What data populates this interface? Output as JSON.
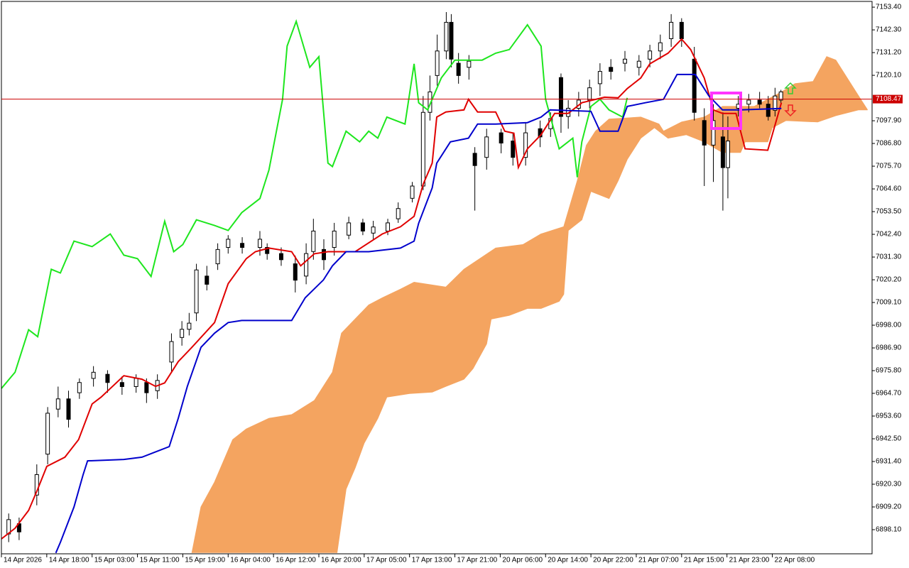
{
  "chart_data": {
    "type": "candlestick",
    "xlim": [
      0,
      192
    ],
    "ylim": [
      6886.3,
      7156.9
    ],
    "yticks": [
      {
        "value": 7153.4,
        "label": "7153.40"
      },
      {
        "value": 7142.3,
        "label": "7142.30"
      },
      {
        "value": 7131.2,
        "label": "7131.20"
      },
      {
        "value": 7120.1,
        "label": "7120.10"
      },
      {
        "value": 7097.9,
        "label": "7097.90"
      },
      {
        "value": 7086.8,
        "label": "7086.80"
      },
      {
        "value": 7075.7,
        "label": "7075.70"
      },
      {
        "value": 7064.6,
        "label": "7064.60"
      },
      {
        "value": 7053.5,
        "label": "7053.50"
      },
      {
        "value": 7042.4,
        "label": "7042.40"
      },
      {
        "value": 7031.3,
        "label": "7031.30"
      },
      {
        "value": 7020.2,
        "label": "7020.20"
      },
      {
        "value": 7009.1,
        "label": "7009.10"
      },
      {
        "value": 6998,
        "label": "6998.00"
      },
      {
        "value": 6986.9,
        "label": "6986.90"
      },
      {
        "value": 6975.8,
        "label": "6975.80"
      },
      {
        "value": 6964.7,
        "label": "6964.70"
      },
      {
        "value": 6953.6,
        "label": "6953.60"
      },
      {
        "value": 6942.5,
        "label": "6942.50"
      },
      {
        "value": 6931.4,
        "label": "6931.40"
      },
      {
        "value": 6920.3,
        "label": "6920.30"
      },
      {
        "value": 6909.2,
        "label": "6909.20"
      },
      {
        "value": 6898.1,
        "label": "6898.10"
      }
    ],
    "xticks": [
      {
        "value": 0,
        "label": "14 Apr 2026"
      },
      {
        "value": 10,
        "label": "14 Apr 18:00"
      },
      {
        "value": 20,
        "label": "15 Apr 03:00"
      },
      {
        "value": 30,
        "label": "15 Apr 11:00"
      },
      {
        "value": 40,
        "label": "15 Apr 19:00"
      },
      {
        "value": 50,
        "label": "16 Apr 04:00"
      },
      {
        "value": 60,
        "label": "16 Apr 12:00"
      },
      {
        "value": 70,
        "label": "16 Apr 20:00"
      },
      {
        "value": 80,
        "label": "17 Apr 05:00"
      },
      {
        "value": 90,
        "label": "17 Apr 13:00"
      },
      {
        "value": 100,
        "label": "17 Apr 21:00"
      },
      {
        "value": 110,
        "label": "20 Apr 06:00"
      },
      {
        "value": 120,
        "label": "20 Apr 14:00"
      },
      {
        "value": 130,
        "label": "20 Apr 22:00"
      },
      {
        "value": 140,
        "label": "21 Apr 07:00"
      },
      {
        "value": 150,
        "label": "21 Apr 15:00"
      },
      {
        "value": 160,
        "label": "21 Apr 23:00"
      },
      {
        "value": 170,
        "label": "22 Apr 08:00"
      }
    ],
    "candles": {
      "x": [
        1.6,
        3.9,
        7.8,
        10.2,
        12.5,
        14.8,
        17.2,
        20.3,
        23.4,
        26.6,
        29.7,
        32.0,
        34.4,
        37.5,
        39.8,
        41.4,
        43.0,
        45.3,
        47.7,
        50.0,
        53.1,
        57.0,
        58.6,
        61.7,
        64.8,
        67.2,
        68.8,
        71.1,
        73.4,
        76.6,
        79.7,
        82.0,
        85.2,
        87.5,
        90.6,
        93.0,
        94.5,
        96.1,
        98.1,
        99.2,
        100.8,
        103.1,
        104.4,
        107.0,
        110.2,
        112.8,
        115.6,
        118.8,
        121.1,
        123.4,
        125.0,
        127.3,
        129.7,
        132.0,
        134.4,
        137.5,
        140.6,
        143.0,
        145.3,
        147.7,
        150.0,
        152.8,
        155.0,
        157.0,
        159.1,
        160.2,
        162.5,
        164.8,
        167.2,
        169.1,
        170.6,
        171.9
      ],
      "open": [
        6896,
        6901,
        6915,
        6935,
        6957,
        6962,
        6965,
        6972,
        6974,
        6970,
        6968,
        6970,
        6966,
        6980,
        6992,
        6996,
        7004,
        7022,
        7028,
        7036,
        7038,
        7036,
        7036,
        7033,
        7028,
        7022,
        7034,
        7035,
        7036,
        7042,
        7048,
        7043,
        7044,
        7050,
        7060,
        7066,
        7102,
        7120,
        7132,
        7146,
        7126,
        7124,
        7082,
        7080,
        7092,
        7088,
        7080,
        7094,
        7094,
        7119,
        7100,
        7104,
        7108,
        7116,
        7124,
        7126,
        7124,
        7128,
        7132,
        7138,
        7146,
        7128,
        7098,
        7086,
        7090,
        7075,
        7104,
        7106,
        7108,
        7106,
        7103,
        7108
      ],
      "high": [
        6906,
        6904,
        6930,
        6958,
        6968,
        6966,
        6972,
        6978,
        6976,
        6973,
        6974,
        6972,
        6974,
        6994,
        7000,
        7004,
        7028,
        7027,
        7038,
        7042,
        7041,
        7044,
        7038,
        7036,
        7032,
        7038,
        7050,
        7040,
        7048,
        7051,
        7050,
        7049,
        7050,
        7058,
        7068,
        7110,
        7120,
        7140,
        7151,
        7150,
        7131,
        7130,
        7085,
        7094,
        7094,
        7092,
        7097,
        7098,
        7102,
        7121,
        7108,
        7112,
        7118,
        7126,
        7128,
        7132,
        7130,
        7135,
        7140,
        7150,
        7148,
        7134,
        7104,
        7106,
        7102,
        7100,
        7110,
        7111,
        7112,
        7110,
        7114,
        7113
      ],
      "low": [
        6892,
        6893,
        6910,
        6930,
        6953,
        6948,
        6962,
        6968,
        6965,
        6964,
        6965,
        6960,
        6962,
        6975,
        6988,
        6993,
        7000,
        7015,
        7025,
        7033,
        7033,
        7032,
        7030,
        7027,
        7014,
        7018,
        7030,
        7025,
        7032,
        7040,
        7042,
        7040,
        7042,
        7048,
        7058,
        7064,
        7098,
        7115,
        7128,
        7124,
        7116,
        7118,
        7054,
        7074,
        7082,
        7076,
        7076,
        7085,
        7090,
        7092,
        7094,
        7100,
        7104,
        7110,
        7118,
        7122,
        7120,
        7124,
        7128,
        7134,
        7134,
        7098,
        7066,
        7068,
        7054,
        7060,
        7100,
        7102,
        7104,
        7098,
        7100,
        7106
      ],
      "close": [
        6903,
        6897,
        6925,
        6955,
        6962,
        6952,
        6970,
        6975,
        6970,
        6968,
        6972,
        6965,
        6971,
        6990,
        6996,
        6999,
        7025,
        7018,
        7035,
        7040,
        7036,
        7040,
        7033,
        7030,
        7020,
        7033,
        7044,
        7030,
        7044,
        7048,
        7044,
        7046,
        7048,
        7055,
        7066,
        7102,
        7112,
        7132,
        7146,
        7128,
        7120,
        7127,
        7076,
        7090,
        7087,
        7080,
        7092,
        7090,
        7099,
        7100,
        7104,
        7108,
        7114,
        7122,
        7122,
        7128,
        7127,
        7132,
        7136,
        7146,
        7138,
        7102,
        7086,
        7098,
        7075,
        7088,
        7106,
        7108,
        7106,
        7100,
        7110,
        7112
      ]
    },
    "up_color": "#ffffff",
    "down_color": "#000000",
    "cloud": {
      "color": "#f4a460",
      "edges": [
        {
          "x": [
            42,
            44,
            47,
            51,
            54,
            59,
            64,
            69,
            73,
            75,
            78,
            81,
            84,
            88,
            91,
            98,
            102,
            109,
            115,
            119,
            124,
            127,
            129,
            131,
            134,
            141,
            145,
            146,
            150,
            155,
            159,
            166,
            172,
            175,
            179,
            182,
            184,
            189,
            191
          ],
          "values": [
            6886.7,
            6909.2,
            6921.3,
            6942.1,
            6947.3,
            6952.5,
            6954.3,
            6961.2,
            6975.0,
            6994.1,
            7001.0,
            7007.9,
            7011.4,
            7015.6,
            7019.0,
            7016.6,
            7025.3,
            7035.7,
            7037.4,
            7042.6,
            7046.1,
            7068.6,
            7085.9,
            7092.8,
            7098.7,
            7099.7,
            7096.3,
            7092.8,
            7097.3,
            7099.7,
            7104.9,
            7104.9,
            7111.9,
            7116.0,
            7117.1,
            7129.2,
            7127.5,
            7110.1,
            7103.2
          ]
        },
        {
          "x": [
            74,
            76,
            78,
            80,
            83,
            85,
            90,
            95,
            98,
            102,
            104,
            107,
            108,
            112,
            116,
            119,
            123,
            124,
            125,
            128,
            130,
            134,
            136,
            138,
            141,
            144,
            147,
            151,
            155,
            159,
            163,
            164,
            169,
            170,
            173,
            180,
            184,
            189,
            191
          ],
          "values": [
            6886.7,
            6917.9,
            6928.3,
            6940.4,
            6952.5,
            6962.9,
            6964.6,
            6965.3,
            6968.1,
            6971.6,
            6976.8,
            6988.9,
            7001.0,
            7002.8,
            7006.2,
            7006.2,
            7009.7,
            7013.1,
            7044.3,
            7049.5,
            7063.4,
            7059.9,
            7068.6,
            7079.0,
            7089.4,
            7094.5,
            7089.4,
            7091.1,
            7087.6,
            7082.4,
            7082.4,
            7087.6,
            7087.6,
            7094.5,
            7098.0,
            7097.3,
            7100.4,
            7103.2,
            7103.2
          ]
        }
      ]
    },
    "lines": [
      {
        "color": "#1ee61e",
        "x": [
          0,
          3,
          6,
          8,
          11,
          13,
          16,
          20,
          24,
          27,
          30,
          33,
          36,
          38,
          40,
          43,
          47,
          50,
          53,
          57,
          59,
          62,
          63,
          65,
          68,
          70,
          72,
          73,
          76,
          79,
          81,
          83,
          85,
          89,
          91,
          92,
          94,
          97,
          100,
          106,
          109,
          112,
          116,
          119,
          120,
          123,
          126,
          127,
          128,
          130,
          132,
          134,
          137,
          138
        ],
        "values": [
          6967.1,
          6975.0,
          6995.8,
          6992.4,
          7025.3,
          7023.5,
          7039.1,
          7036.4,
          7042.6,
          7032.2,
          7030.5,
          7021.8,
          7048.8,
          7033.9,
          7037.4,
          7049.5,
          7046.7,
          7044.3,
          7053.0,
          7059.9,
          7073.8,
          7108.4,
          7134.4,
          7146.5,
          7124.0,
          7129.2,
          7077.2,
          7075.5,
          7092.8,
          7087.6,
          7092.8,
          7089.4,
          7099.7,
          7096.3,
          7125.7,
          7106.7,
          7103.2,
          7118.8,
          7127.5,
          7127.5,
          7130.9,
          7132.7,
          7144.8,
          7134.4,
          7108.4,
          7084.2,
          7089.4,
          7070.3,
          7087.6,
          7104.9,
          7108.4,
          7103.2,
          7099.7,
          7109.1
        ]
      },
      {
        "color": "#e00000",
        "x": [
          0,
          3,
          6,
          8,
          10,
          14,
          17,
          20,
          22,
          27,
          31,
          34,
          36,
          39,
          42,
          47,
          50,
          54,
          56,
          59,
          64,
          66,
          69,
          72,
          78,
          84,
          88,
          91,
          93,
          95,
          96,
          98,
          102,
          103,
          105,
          109,
          111,
          113,
          114,
          116,
          119,
          122,
          125,
          128,
          133,
          136,
          138,
          141,
          143,
          147,
          150,
          152,
          155,
          157,
          159,
          162,
          164,
          169,
          170,
          172
        ],
        "values": [
          6893.6,
          6898.8,
          6907.5,
          6917.9,
          6929.0,
          6933.5,
          6942.1,
          6959.5,
          6962.9,
          6973.3,
          6971.6,
          6968.1,
          6969.8,
          6980.2,
          6987.2,
          6999.3,
          7018.3,
          7030.5,
          7033.9,
          7035.7,
          7033.9,
          7027.0,
          7032.9,
          7033.9,
          7033.9,
          7042.6,
          7046.1,
          7051.2,
          7066.8,
          7077.2,
          7099.7,
          7102.2,
          7103.2,
          7108.4,
          7102.2,
          7102.2,
          7092.8,
          7091.8,
          7075.1,
          7084.2,
          7091.1,
          7101.5,
          7101.5,
          7106.7,
          7109.4,
          7109.1,
          7113.6,
          7118.8,
          7125.7,
          7130.9,
          7137.8,
          7132.7,
          7118.8,
          7103.2,
          7101.5,
          7101.5,
          7084.2,
          7083.5,
          7091.1,
          7106.7
        ]
      },
      {
        "color": "#0000cc",
        "x": [
          12,
          13,
          16,
          18,
          19,
          27,
          31,
          37,
          39,
          41,
          44,
          47,
          50,
          53,
          64,
          67,
          71,
          73,
          76,
          81,
          88,
          91,
          92,
          95,
          96,
          99,
          103,
          105,
          109,
          116,
          119,
          121,
          130,
          132,
          136,
          138,
          142,
          146,
          149,
          153,
          155,
          156,
          159,
          163,
          172
        ],
        "values": [
          6886.7,
          6891.9,
          6909.2,
          6924.8,
          6931.7,
          6932.4,
          6933.5,
          6938.7,
          6952.5,
          6968.1,
          6987.2,
          6994.1,
          6999.3,
          7000.3,
          7000.3,
          7011.4,
          7020.1,
          7027.0,
          7033.9,
          7033.9,
          7035.7,
          7039.1,
          7047.8,
          7065.1,
          7077.2,
          7087.6,
          7089.4,
          7096.3,
          7096.3,
          7097.0,
          7099.7,
          7103.2,
          7102.5,
          7092.8,
          7092.8,
          7104.9,
          7106.7,
          7108.4,
          7120.5,
          7120.5,
          7113.6,
          7110.1,
          7103.2,
          7103.2,
          7103.9
        ]
      }
    ],
    "current_price": 7108.47,
    "current_price_color": "#cc0000"
  }
}
